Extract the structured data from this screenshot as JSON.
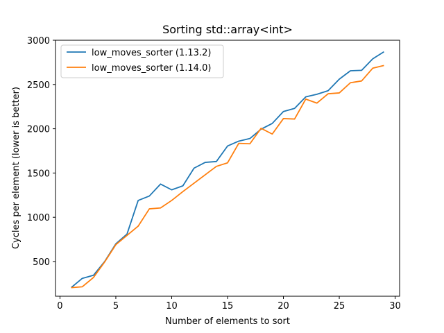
{
  "chart_data": {
    "type": "line",
    "title": "Sorting std::array<int>",
    "xlabel": "Number of elements to sort",
    "ylabel": "Cycles per element (lower is better)",
    "xlim": [
      -0.4,
      30.4
    ],
    "ylim": [
      108,
      3000
    ],
    "xticks": [
      0,
      5,
      10,
      15,
      20,
      25,
      30
    ],
    "yticks": [
      500,
      1000,
      1500,
      2000,
      2500,
      3000
    ],
    "grid": false,
    "legend_position": "top-left",
    "x": [
      1,
      2,
      3,
      4,
      5,
      6,
      7,
      8,
      9,
      10,
      11,
      12,
      13,
      14,
      15,
      16,
      17,
      18,
      19,
      20,
      21,
      22,
      23,
      24,
      25,
      26,
      27,
      28,
      29
    ],
    "series": [
      {
        "name": "low_moves_sorter (1.13.2)",
        "color": "#1f77b4",
        "values": [
          205,
          310,
          345,
          500,
          700,
          810,
          1190,
          1240,
          1375,
          1310,
          1355,
          1555,
          1620,
          1630,
          1805,
          1860,
          1890,
          1995,
          2060,
          2195,
          2230,
          2360,
          2390,
          2430,
          2560,
          2655,
          2660,
          2790,
          2870
        ]
      },
      {
        "name": "low_moves_sorter (1.14.0)",
        "color": "#ff7f0e",
        "values": [
          205,
          215,
          320,
          495,
          690,
          795,
          900,
          1095,
          1105,
          1190,
          1290,
          1385,
          1480,
          1575,
          1615,
          1835,
          1830,
          2005,
          1940,
          2115,
          2110,
          2335,
          2290,
          2395,
          2405,
          2520,
          2540,
          2685,
          2715
        ]
      }
    ]
  }
}
